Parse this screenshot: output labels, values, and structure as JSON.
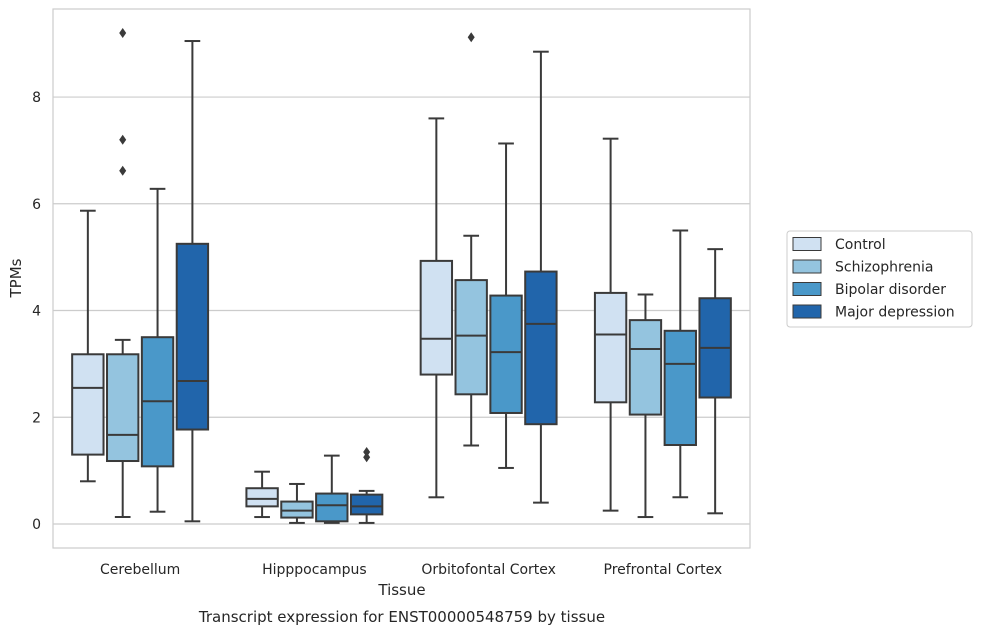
{
  "chart_data": {
    "type": "box",
    "xlabel": "Tissue",
    "ylabel": "TPMs",
    "caption": "Transcript expression for ENST00000548759 by tissue",
    "ylim": [
      -0.45,
      9.65
    ],
    "yticks": [
      0,
      2,
      4,
      6,
      8
    ],
    "grid": "horizontal",
    "legend_position": "right",
    "categories": [
      "Cerebellum",
      "Hipppocampus",
      "Orbitofontal Cortex",
      "Prefrontal Cortex"
    ],
    "series": [
      {
        "name": "Control",
        "color": "#d0e1f2",
        "boxes": [
          {
            "whislo": 0.8,
            "q1": 1.3,
            "med": 2.55,
            "q3": 3.18,
            "whishi": 5.87,
            "fliers": []
          },
          {
            "whislo": 0.13,
            "q1": 0.33,
            "med": 0.47,
            "q3": 0.67,
            "whishi": 0.98,
            "fliers": []
          },
          {
            "whislo": 0.5,
            "q1": 2.8,
            "med": 3.47,
            "q3": 4.93,
            "whishi": 7.6,
            "fliers": []
          },
          {
            "whislo": 0.25,
            "q1": 2.28,
            "med": 3.55,
            "q3": 4.33,
            "whishi": 7.22,
            "fliers": []
          }
        ]
      },
      {
        "name": "Schizophrenia",
        "color": "#94c4df",
        "boxes": [
          {
            "whislo": 0.13,
            "q1": 1.18,
            "med": 1.67,
            "q3": 3.18,
            "whishi": 3.45,
            "fliers": [
              6.62,
              7.2,
              9.2
            ]
          },
          {
            "whislo": 0.02,
            "q1": 0.12,
            "med": 0.25,
            "q3": 0.42,
            "whishi": 0.75,
            "fliers": []
          },
          {
            "whislo": 1.47,
            "q1": 2.43,
            "med": 3.53,
            "q3": 4.57,
            "whishi": 5.4,
            "fliers": [
              9.12
            ]
          },
          {
            "whislo": 0.13,
            "q1": 2.05,
            "med": 3.28,
            "q3": 3.82,
            "whishi": 4.3,
            "fliers": []
          }
        ]
      },
      {
        "name": "Bipolar disorder",
        "color": "#4a98c9",
        "boxes": [
          {
            "whislo": 0.23,
            "q1": 1.08,
            "med": 2.3,
            "q3": 3.5,
            "whishi": 6.28,
            "fliers": []
          },
          {
            "whislo": 0.02,
            "q1": 0.05,
            "med": 0.35,
            "q3": 0.57,
            "whishi": 1.28,
            "fliers": []
          },
          {
            "whislo": 1.05,
            "q1": 2.08,
            "med": 3.22,
            "q3": 4.28,
            "whishi": 7.13,
            "fliers": []
          },
          {
            "whislo": 0.5,
            "q1": 1.48,
            "med": 3.0,
            "q3": 3.62,
            "whishi": 5.5,
            "fliers": []
          }
        ]
      },
      {
        "name": "Major depression",
        "color": "#2165ab",
        "boxes": [
          {
            "whislo": 0.05,
            "q1": 1.77,
            "med": 2.68,
            "q3": 5.25,
            "whishi": 9.05,
            "fliers": []
          },
          {
            "whislo": 0.02,
            "q1": 0.18,
            "med": 0.33,
            "q3": 0.55,
            "whishi": 0.62,
            "fliers": [
              1.25,
              1.35
            ]
          },
          {
            "whislo": 0.4,
            "q1": 1.87,
            "med": 3.75,
            "q3": 4.73,
            "whishi": 8.85,
            "fliers": []
          },
          {
            "whislo": 0.2,
            "q1": 2.37,
            "med": 3.3,
            "q3": 4.23,
            "whishi": 5.15,
            "fliers": []
          }
        ]
      }
    ]
  }
}
